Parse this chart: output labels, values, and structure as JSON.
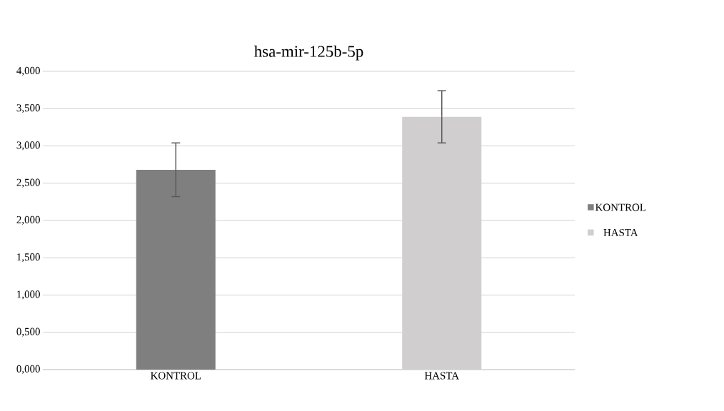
{
  "chart_data": {
    "type": "bar",
    "title": "hsa-mir-125b-5p",
    "categories": [
      "KONTROL",
      "HASTA"
    ],
    "series": [
      {
        "name": "KONTROL",
        "color": "#7f7f7f",
        "values": [
          2.68,
          null
        ],
        "errors": [
          0.36,
          null
        ]
      },
      {
        "name": "HASTA",
        "color": "#d0cece",
        "values": [
          null,
          3.39
        ],
        "errors": [
          null,
          0.35
        ]
      }
    ],
    "ylim": [
      0,
      4
    ],
    "yticks": [
      {
        "value": 0,
        "label": "0,000"
      },
      {
        "value": 0.5,
        "label": "0,500"
      },
      {
        "value": 1,
        "label": "1,000"
      },
      {
        "value": 1.5,
        "label": "1,500"
      },
      {
        "value": 2,
        "label": "2,000"
      },
      {
        "value": 2.5,
        "label": "2,500"
      },
      {
        "value": 3,
        "label": "3,000"
      },
      {
        "value": 3.5,
        "label": "3,500"
      },
      {
        "value": 4,
        "label": "4,000"
      }
    ],
    "grid": "y",
    "legend": "right"
  }
}
